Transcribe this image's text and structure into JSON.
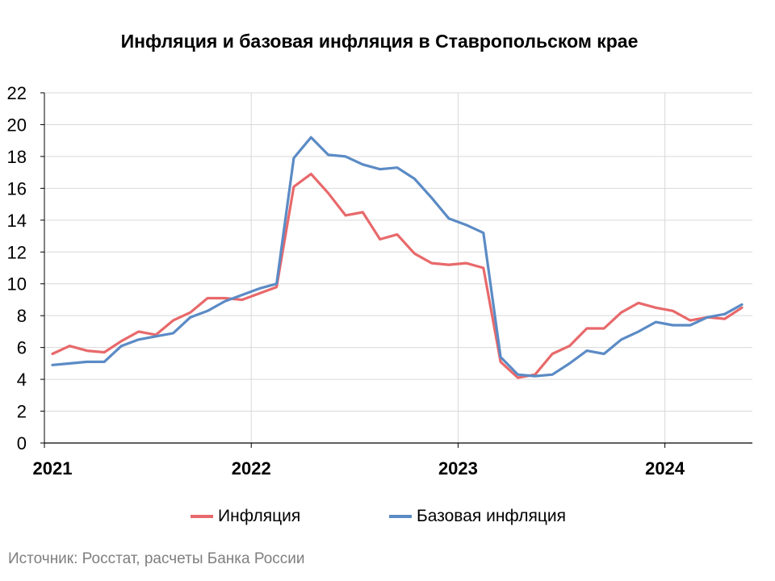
{
  "chart_data": {
    "type": "line",
    "title": "Инфляция и базовая инфляция в Ставропольском крае",
    "xlabel": "",
    "ylabel": "",
    "ylim": [
      0,
      22
    ],
    "yticks": [
      "0",
      "2",
      "4",
      "6",
      "8",
      "10",
      "12",
      "14",
      "16",
      "18",
      "20",
      "22"
    ],
    "xticks": [
      "2021",
      "2022",
      "2023",
      "2024"
    ],
    "x": [
      "2021-01",
      "2021-02",
      "2021-03",
      "2021-04",
      "2021-05",
      "2021-06",
      "2021-07",
      "2021-08",
      "2021-09",
      "2021-10",
      "2021-11",
      "2021-12",
      "2022-01",
      "2022-02",
      "2022-03",
      "2022-04",
      "2022-05",
      "2022-06",
      "2022-07",
      "2022-08",
      "2022-09",
      "2022-10",
      "2022-11",
      "2022-12",
      "2023-01",
      "2023-02",
      "2023-03",
      "2023-04",
      "2023-05",
      "2023-06",
      "2023-07",
      "2023-08",
      "2023-09",
      "2023-10",
      "2023-11",
      "2023-12",
      "2024-01",
      "2024-02",
      "2024-03",
      "2024-04",
      "2024-05"
    ],
    "grid": true,
    "legend_position": "bottom",
    "series": [
      {
        "name": "Инфляция",
        "color": "#e8696b",
        "values": [
          5.6,
          6.1,
          5.8,
          5.7,
          6.4,
          7.0,
          6.8,
          7.7,
          8.2,
          9.1,
          9.1,
          9.0,
          9.4,
          9.8,
          16.1,
          16.9,
          15.7,
          14.3,
          14.5,
          12.8,
          13.1,
          11.9,
          11.3,
          11.2,
          11.3,
          11.0,
          5.1,
          4.1,
          4.3,
          5.6,
          6.1,
          7.2,
          7.2,
          8.2,
          8.8,
          8.5,
          8.3,
          7.7,
          7.9,
          7.8,
          8.5
        ]
      },
      {
        "name": "Базовая инфляция",
        "color": "#5b8bc5",
        "values": [
          4.9,
          5.0,
          5.1,
          5.1,
          6.1,
          6.5,
          6.7,
          6.9,
          7.9,
          8.3,
          8.9,
          9.3,
          9.7,
          10.0,
          17.9,
          19.2,
          18.1,
          18.0,
          17.5,
          17.2,
          17.3,
          16.6,
          15.4,
          14.1,
          13.7,
          13.2,
          5.4,
          4.3,
          4.2,
          4.3,
          5.0,
          5.8,
          5.6,
          6.5,
          7.0,
          7.6,
          7.4,
          7.4,
          7.9,
          8.1,
          8.7
        ]
      }
    ]
  },
  "source_note": "Источник: Росстат, расчеты Банка России"
}
